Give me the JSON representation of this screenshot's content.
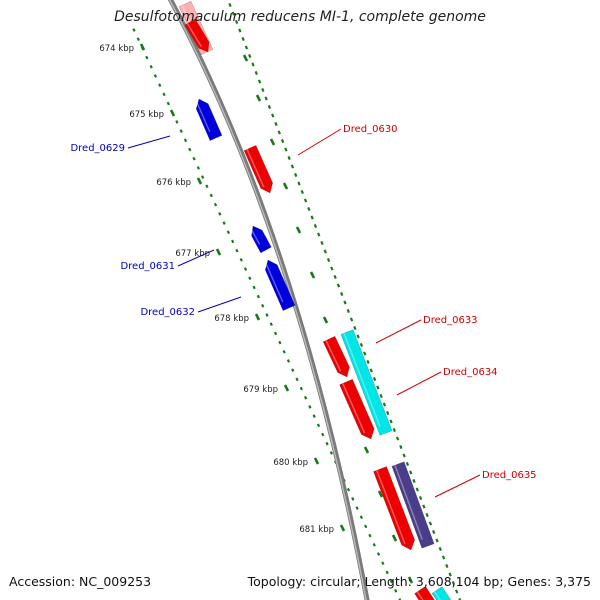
{
  "title": "Desulfotomaculum reducens MI-1, complete genome",
  "footer": {
    "accession": "Accession: NC_009253",
    "summary": "Topology: circular; Length: 3,608,104 bp; Genes: 3,375"
  },
  "colors": {
    "backbone": "#8a8a8a",
    "forward_gene": "#ee0000",
    "reverse_gene": "#0000dd",
    "rna_gene": "#00e5e5",
    "other_feature": "#4a3d8a",
    "tick": "#1a7a1a",
    "ruler_label": "#222222",
    "forward_label": "#cc0000",
    "reverse_label": "#0000bb"
  },
  "ruler": {
    "labels": [
      "674 kbp",
      "675 kbp",
      "676 kbp",
      "677 kbp",
      "678 kbp",
      "679 kbp",
      "680 kbp",
      "681 kbp"
    ]
  },
  "gene_labels": [
    {
      "text": "Dred_0629",
      "strand": "reverse"
    },
    {
      "text": "Dred_0630",
      "strand": "forward"
    },
    {
      "text": "Dred_0631",
      "strand": "reverse"
    },
    {
      "text": "Dred_0632",
      "strand": "reverse"
    },
    {
      "text": "Dred_0633",
      "strand": "forward"
    },
    {
      "text": "Dred_0634",
      "strand": "forward"
    },
    {
      "text": "Dred_0635",
      "strand": "forward"
    }
  ]
}
